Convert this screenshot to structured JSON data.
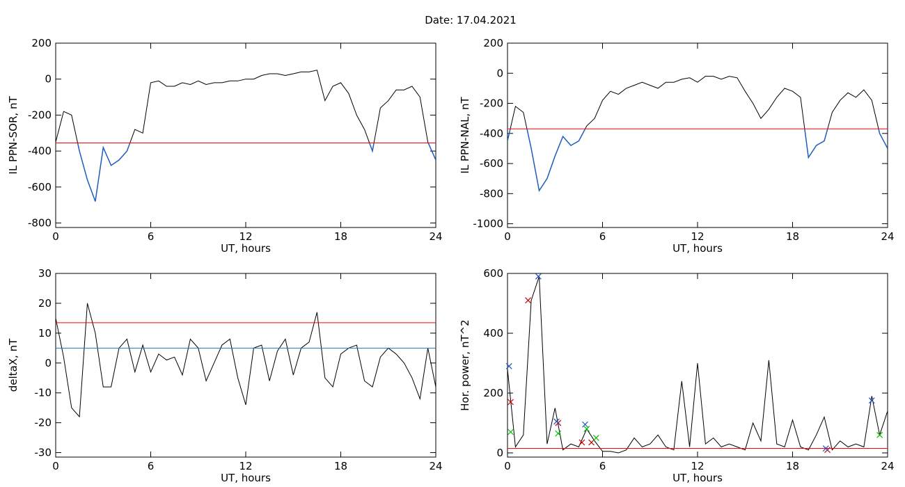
{
  "title": "Date:  17.04.2021",
  "chart_data": [
    {
      "type": "line",
      "ylabel": "IL PPN-SOR, nT",
      "xlabel": "UT, hours",
      "xlim": [
        0,
        24
      ],
      "xticks": [
        0,
        6,
        12,
        18,
        24
      ],
      "ylim": [
        -825,
        200
      ],
      "yticks": [
        -800,
        -600,
        -400,
        -200,
        0,
        200
      ],
      "x": [
        0,
        0.5,
        1,
        1.5,
        2,
        2.5,
        3,
        3.5,
        4,
        4.5,
        5,
        5.5,
        6,
        6.5,
        7,
        7.5,
        8,
        8.5,
        9,
        9.5,
        10,
        10.5,
        11,
        11.5,
        12,
        12.5,
        13,
        13.5,
        14,
        14.5,
        15,
        15.5,
        16,
        16.5,
        17,
        17.5,
        18,
        18.5,
        19,
        19.5,
        20,
        20.5,
        21,
        21.5,
        22,
        22.5,
        23,
        23.5,
        24
      ],
      "series": [
        {
          "color": "#000000",
          "below_color": "#1f5fc0",
          "values": [
            -350,
            -180,
            -200,
            -400,
            -560,
            -680,
            -380,
            -480,
            -450,
            -400,
            -280,
            -300,
            -20,
            -10,
            -40,
            -40,
            -20,
            -30,
            -10,
            -30,
            -20,
            -20,
            -10,
            -10,
            0,
            0,
            20,
            30,
            30,
            20,
            30,
            40,
            40,
            50,
            -120,
            -40,
            -20,
            -80,
            -200,
            -280,
            -400,
            -160,
            -120,
            -60,
            -60,
            -40,
            -100,
            -350,
            -450
          ]
        }
      ],
      "thresholds": [
        {
          "value": -355,
          "color": "#ff0000"
        }
      ]
    },
    {
      "type": "line",
      "ylabel": "IL PPN-NAL, nT",
      "xlabel": "UT, hours",
      "xlim": [
        0,
        24
      ],
      "xticks": [
        0,
        6,
        12,
        18,
        24
      ],
      "ylim": [
        -1025,
        200
      ],
      "yticks": [
        -1000,
        -800,
        -600,
        -400,
        -200,
        0,
        200
      ],
      "x": [
        0,
        0.5,
        1,
        1.5,
        2,
        2.5,
        3,
        3.5,
        4,
        4.5,
        5,
        5.5,
        6,
        6.5,
        7,
        7.5,
        8,
        8.5,
        9,
        9.5,
        10,
        10.5,
        11,
        11.5,
        12,
        12.5,
        13,
        13.5,
        14,
        14.5,
        15,
        15.5,
        16,
        16.5,
        17,
        17.5,
        18,
        18.5,
        19,
        19.5,
        20,
        20.5,
        21,
        21.5,
        22,
        22.5,
        23,
        23.5,
        24
      ],
      "series": [
        {
          "color": "#000000",
          "below_color": "#1f5fc0",
          "values": [
            -450,
            -220,
            -260,
            -500,
            -780,
            -700,
            -550,
            -420,
            -480,
            -450,
            -350,
            -300,
            -180,
            -120,
            -140,
            -100,
            -80,
            -60,
            -80,
            -100,
            -60,
            -60,
            -40,
            -30,
            -60,
            -20,
            -20,
            -40,
            -20,
            -30,
            -120,
            -200,
            -300,
            -240,
            -160,
            -100,
            -120,
            -160,
            -560,
            -480,
            -450,
            -260,
            -180,
            -130,
            -160,
            -110,
            -180,
            -400,
            -500
          ]
        }
      ],
      "thresholds": [
        {
          "value": -370,
          "color": "#ff0000"
        }
      ]
    },
    {
      "type": "line",
      "ylabel": "deltaX, nT",
      "xlabel": "UT, hours",
      "xlim": [
        0,
        24
      ],
      "xticks": [
        0,
        6,
        12,
        18,
        24
      ],
      "ylim": [
        -31.5,
        30
      ],
      "yticks": [
        -30,
        -20,
        -10,
        0,
        10,
        20,
        30
      ],
      "x": [
        0,
        0.5,
        1,
        1.5,
        2,
        2.5,
        3,
        3.5,
        4,
        4.5,
        5,
        5.5,
        6,
        6.5,
        7,
        7.5,
        8,
        8.5,
        9,
        9.5,
        10,
        10.5,
        11,
        11.5,
        12,
        12.5,
        13,
        13.5,
        14,
        14.5,
        15,
        15.5,
        16,
        16.5,
        17,
        17.5,
        18,
        18.5,
        19,
        19.5,
        20,
        20.5,
        21,
        21.5,
        22,
        22.5,
        23,
        23.5,
        24
      ],
      "series": [
        {
          "color": "#000000",
          "values": [
            15,
            2,
            -15,
            -18,
            20,
            10,
            -8,
            -8,
            5,
            8,
            -3,
            6,
            -3,
            3,
            1,
            2,
            -4,
            8,
            5,
            -6,
            0,
            6,
            8,
            -5,
            -14,
            5,
            6,
            -6,
            4,
            8,
            -4,
            5,
            7,
            17,
            -5,
            -8,
            3,
            5,
            6,
            -6,
            -8,
            2,
            5,
            3,
            0,
            -5,
            -12,
            5,
            -8
          ]
        }
      ],
      "thresholds": [
        {
          "value": 13.5,
          "color": "#ff0000"
        },
        {
          "value": 5,
          "color": "#1f77b4"
        }
      ]
    },
    {
      "type": "line",
      "ylabel": "Hor. power, nT^2",
      "xlabel": "UT, hours",
      "xlim": [
        0,
        24
      ],
      "xticks": [
        0,
        6,
        12,
        18,
        24
      ],
      "ylim": [
        -14,
        600
      ],
      "yticks": [
        0,
        200,
        400,
        600
      ],
      "x": [
        0,
        0.5,
        1,
        1.5,
        2,
        2.5,
        3,
        3.5,
        4,
        4.5,
        5,
        5.5,
        6,
        6.5,
        7,
        7.5,
        8,
        8.5,
        9,
        9.5,
        10,
        10.5,
        11,
        11.5,
        12,
        12.5,
        13,
        13.5,
        14,
        14.5,
        15,
        15.5,
        16,
        16.5,
        17,
        17.5,
        18,
        18.5,
        19,
        19.5,
        20,
        20.5,
        21,
        21.5,
        22,
        22.5,
        23,
        23.5,
        24
      ],
      "series": [
        {
          "color": "#000000",
          "values": [
            280,
            20,
            60,
            510,
            590,
            30,
            150,
            10,
            30,
            20,
            80,
            40,
            5,
            5,
            0,
            10,
            50,
            20,
            30,
            60,
            20,
            10,
            240,
            20,
            300,
            30,
            50,
            20,
            30,
            20,
            10,
            100,
            40,
            310,
            30,
            20,
            110,
            20,
            10,
            60,
            120,
            10,
            40,
            20,
            30,
            20,
            190,
            60,
            140
          ]
        }
      ],
      "thresholds": [
        {
          "value": 15,
          "color": "#ff0000"
        }
      ],
      "markers": [
        {
          "color": "#cc0000",
          "x": [
            0.2,
            1.3,
            3.2,
            4.7,
            5.3,
            20.2
          ],
          "values": [
            170,
            510,
            100,
            35,
            35,
            10
          ]
        },
        {
          "color": "#1f4fc0",
          "x": [
            0.1,
            1.95,
            3.1,
            4.9,
            20.1,
            23.0
          ],
          "values": [
            290,
            590,
            105,
            95,
            15,
            175
          ]
        },
        {
          "color": "#00c000",
          "x": [
            0.2,
            3.2,
            5.0,
            5.6,
            23.5
          ],
          "values": [
            70,
            65,
            80,
            50,
            60
          ]
        }
      ]
    }
  ]
}
